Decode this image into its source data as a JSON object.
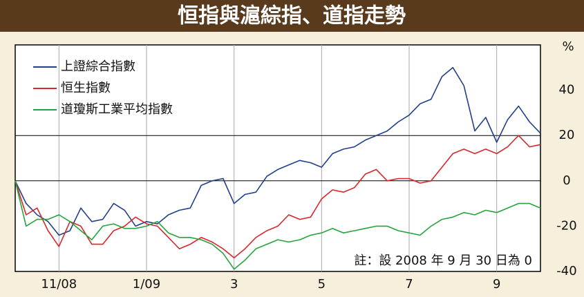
{
  "chart_data": {
    "type": "line",
    "title": "恒指與滬綜指、道指走勢",
    "y_unit": "%",
    "annotation": "註：設 2008 年 9 月 30 日為 0",
    "categories": [
      null,
      null,
      null,
      null,
      "11/08",
      null,
      null,
      null,
      null,
      null,
      null,
      null,
      "1/09",
      null,
      null,
      null,
      null,
      null,
      null,
      null,
      "3",
      null,
      null,
      null,
      null,
      null,
      null,
      null,
      "5",
      null,
      null,
      null,
      null,
      null,
      null,
      null,
      "7",
      null,
      null,
      null,
      null,
      null,
      null,
      null,
      "9",
      null,
      null,
      null,
      null
    ],
    "ylim": [
      -40,
      60
    ],
    "yticks": [
      40,
      20,
      0,
      -20,
      -40
    ],
    "reference_lines": [
      20,
      0
    ],
    "series": [
      {
        "name": "上證綜合指數",
        "color": "#1f3f8a",
        "values": [
          0,
          -10,
          -15,
          -18,
          -24,
          -22,
          -12,
          -18,
          -17,
          -10,
          -13,
          -20,
          -18,
          -19,
          -15,
          -13,
          -12,
          -2,
          0,
          1,
          -10,
          -6,
          -5,
          2,
          5,
          7,
          9,
          8,
          6,
          12,
          14,
          15,
          18,
          20,
          22,
          26,
          29,
          34,
          36,
          46,
          50,
          42,
          22,
          28,
          17,
          27,
          33,
          26,
          21
        ]
      },
      {
        "name": "恒生指數",
        "color": "#d9262a",
        "values": [
          0,
          -15,
          -12,
          -22,
          -29,
          -18,
          -20,
          -28,
          -28,
          -22,
          -20,
          -16,
          -19,
          -20,
          -25,
          -30,
          -28,
          -25,
          -27,
          -30,
          -34,
          -30,
          -25,
          -22,
          -20,
          -15,
          -17,
          -16,
          -8,
          -4,
          -5,
          -3,
          3,
          5,
          0,
          1,
          1,
          -1,
          0,
          6,
          12,
          14,
          12,
          14,
          12,
          15,
          20,
          15,
          16
        ]
      },
      {
        "name": "道瓊斯工業平均指數",
        "color": "#26a33a",
        "values": [
          0,
          -20,
          -17,
          -17,
          -15,
          -18,
          -22,
          -26,
          -20,
          -19,
          -21,
          -21,
          -20,
          -18,
          -23,
          -25,
          -25,
          -26,
          -28,
          -32,
          -39,
          -35,
          -30,
          -28,
          -26,
          -27,
          -26,
          -24,
          -23,
          -21,
          -23,
          -22,
          -21,
          -20,
          -20,
          -22,
          -23,
          -24,
          -20,
          -17,
          -16,
          -14,
          -15,
          -13,
          -14,
          -12,
          -10,
          -10,
          -12
        ]
      }
    ]
  }
}
